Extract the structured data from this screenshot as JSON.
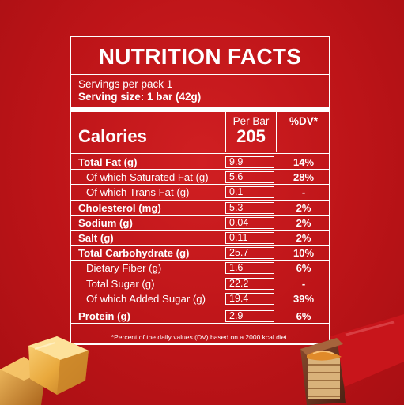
{
  "title": "NUTRITION FACTS",
  "servings": "Servings per pack 1",
  "serving_size": "Serving size: 1 bar (42g)",
  "calories": {
    "label": "Calories",
    "per_bar_label": "Per Bar",
    "value": "205",
    "dv_header": "%DV*"
  },
  "nutrients": [
    {
      "name": "Total Fat (g)",
      "amount": "9.9",
      "dv": "14%",
      "bold": true,
      "sub": false
    },
    {
      "name": "Of which Saturated Fat (g)",
      "amount": "5.6",
      "dv": "28%",
      "bold": false,
      "sub": true
    },
    {
      "name": "Of which Trans Fat (g)",
      "amount": "0.1",
      "dv": "-",
      "bold": false,
      "sub": true
    },
    {
      "name": "Cholesterol (mg)",
      "amount": "5.3",
      "dv": "2%",
      "bold": true,
      "sub": false
    },
    {
      "name": "Sodium (g)",
      "amount": "0.04",
      "dv": "2%",
      "bold": true,
      "sub": false
    },
    {
      "name": "Salt (g)",
      "amount": "0.11",
      "dv": "2%",
      "bold": true,
      "sub": false
    },
    {
      "name": "Total Carbohydrate (g)",
      "amount": "25.7",
      "dv": "10%",
      "bold": true,
      "sub": false
    },
    {
      "name": "Dietary Fiber (g)",
      "amount": "1.6",
      "dv": "6%",
      "bold": false,
      "sub": true
    },
    {
      "name": "Total Sugar (g)",
      "amount": "22.2",
      "dv": "-",
      "bold": false,
      "sub": true
    },
    {
      "name": "Of which Added Sugar (g)",
      "amount": "19.4",
      "dv": "39%",
      "bold": false,
      "sub": true
    },
    {
      "name": "Protein (g)",
      "amount": "2.9",
      "dv": "6%",
      "bold": true,
      "sub": false
    }
  ],
  "footnote": "*Percent of the daily values (DV) based on a 2000 kcal diet.",
  "colors": {
    "background": "#c0161a",
    "text": "#ffffff",
    "caramel": "#e9a93d",
    "chocolate": "#5a2a1a",
    "wrapper": "#c8151b"
  },
  "decorations": [
    "caramel-cubes-image",
    "chocolate-wafer-bar-image"
  ]
}
